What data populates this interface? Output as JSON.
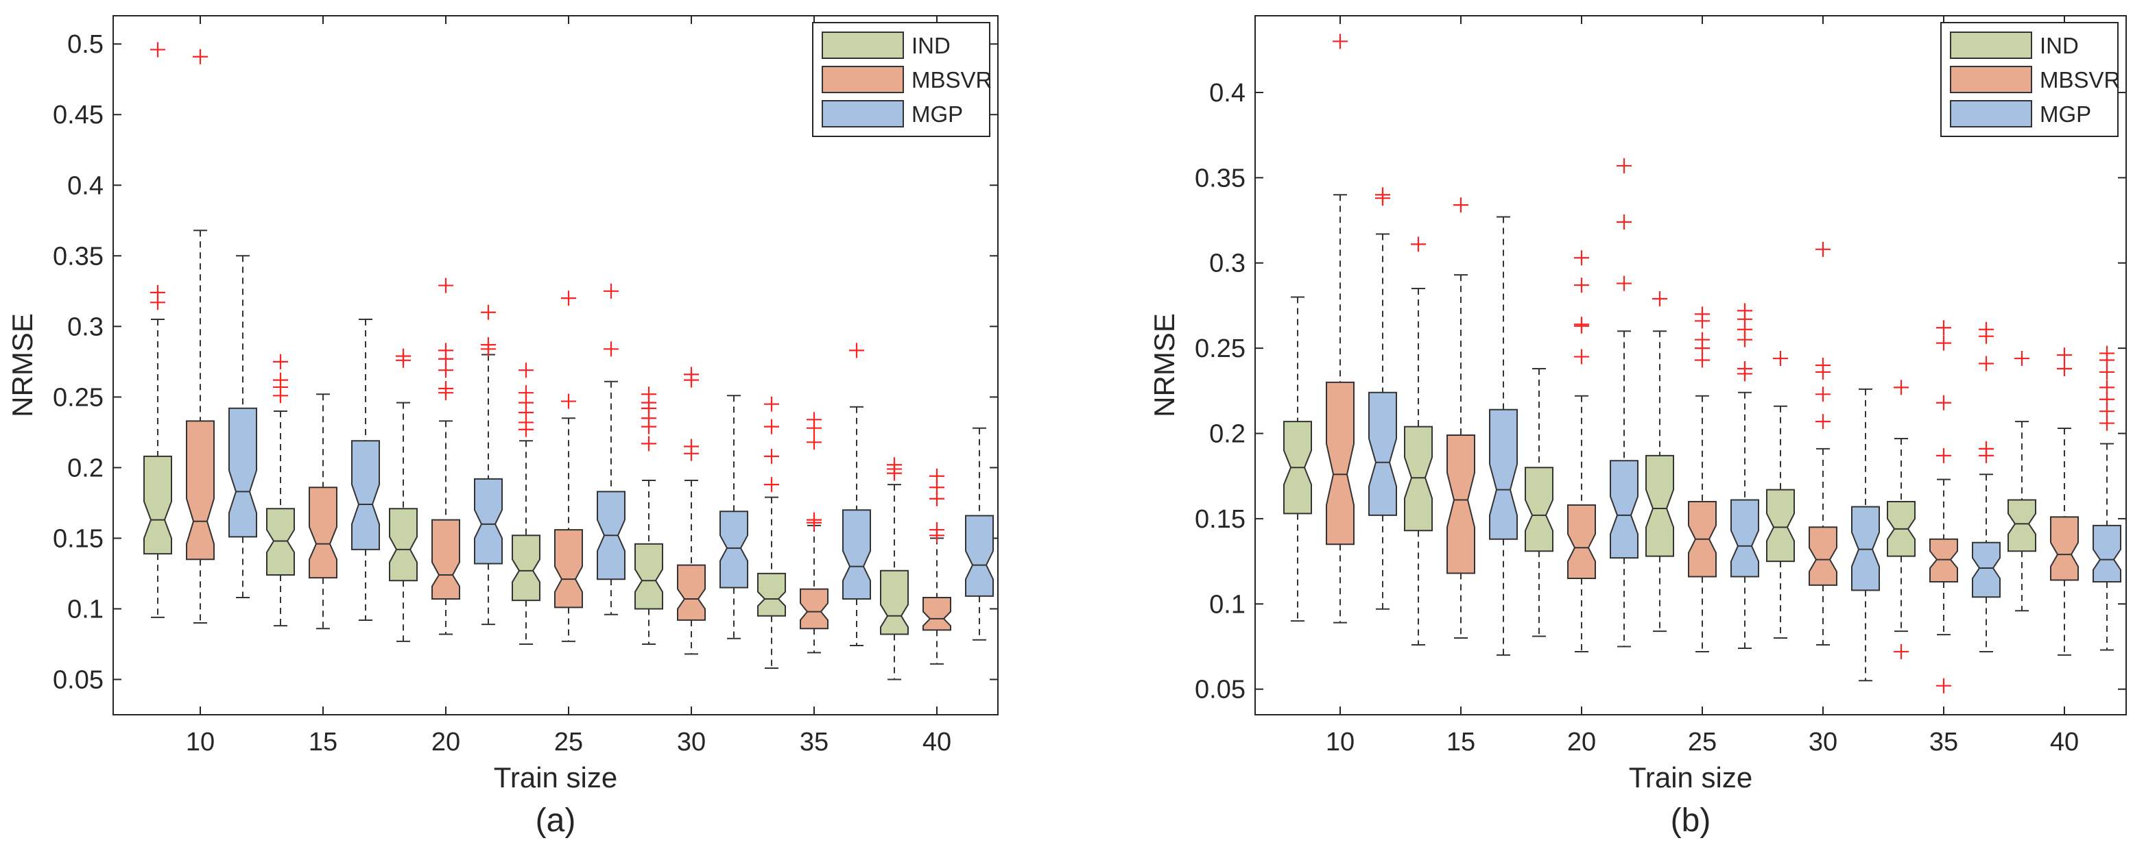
{
  "figure": {
    "colors": {
      "IND": "#c9d3a8",
      "MBSVR": "#e8ab8f",
      "MGP": "#a7c1e2",
      "outlier": "#ff2020",
      "axis": "#262626"
    }
  },
  "chart_data": [
    {
      "type": "box",
      "panel_label": "(a)",
      "xlabel": "Train size",
      "ylabel": "NRMSE",
      "categories": [
        "10",
        "15",
        "20",
        "25",
        "30",
        "35",
        "40"
      ],
      "ylim": [
        0.025,
        0.52
      ],
      "yticks": [
        0.05,
        0.1,
        0.15,
        0.2,
        0.25,
        0.3,
        0.35,
        0.4,
        0.45,
        0.5
      ],
      "ytick_labels": [
        "0.05",
        "0.1",
        "0.15",
        "0.2",
        "0.25",
        "0.3",
        "0.35",
        "0.4",
        "0.45",
        "0.5"
      ],
      "legend": {
        "position": "top-right",
        "entries": [
          "IND",
          "MBSVR",
          "MGP"
        ]
      },
      "series": [
        {
          "name": "IND",
          "boxes": [
            {
              "whisker_low": 0.094,
              "q1": 0.139,
              "median": 0.163,
              "q3": 0.208,
              "whisker_high": 0.305,
              "notch_low": 0.15,
              "notch_high": 0.176,
              "outliers": [
                0.496,
                0.324,
                0.317
              ]
            },
            {
              "whisker_low": 0.088,
              "q1": 0.124,
              "median": 0.148,
              "q3": 0.171,
              "whisker_high": 0.24,
              "notch_low": 0.14,
              "notch_high": 0.156,
              "outliers": [
                0.275,
                0.262,
                0.257,
                0.251
              ]
            },
            {
              "whisker_low": 0.077,
              "q1": 0.12,
              "median": 0.142,
              "q3": 0.171,
              "whisker_high": 0.246,
              "notch_low": 0.133,
              "notch_high": 0.151,
              "outliers": [
                0.279,
                0.276
              ]
            },
            {
              "whisker_low": 0.075,
              "q1": 0.106,
              "median": 0.127,
              "q3": 0.152,
              "whisker_high": 0.219,
              "notch_low": 0.119,
              "notch_high": 0.135,
              "outliers": [
                0.269,
                0.253,
                0.246,
                0.239,
                0.232,
                0.227
              ]
            },
            {
              "whisker_low": 0.075,
              "q1": 0.1,
              "median": 0.12,
              "q3": 0.146,
              "whisker_high": 0.191,
              "notch_low": 0.112,
              "notch_high": 0.128,
              "outliers": [
                0.252,
                0.246,
                0.242,
                0.235,
                0.229,
                0.217
              ]
            },
            {
              "whisker_low": 0.058,
              "q1": 0.095,
              "median": 0.107,
              "q3": 0.125,
              "whisker_high": 0.179,
              "notch_low": 0.102,
              "notch_high": 0.112,
              "outliers": [
                0.245,
                0.229,
                0.208,
                0.188
              ]
            },
            {
              "whisker_low": 0.05,
              "q1": 0.082,
              "median": 0.095,
              "q3": 0.127,
              "whisker_high": 0.188,
              "notch_low": 0.087,
              "notch_high": 0.103,
              "outliers": [
                0.202,
                0.199,
                0.196
              ]
            }
          ]
        },
        {
          "name": "MBSVR",
          "boxes": [
            {
              "whisker_low": 0.09,
              "q1": 0.135,
              "median": 0.162,
              "q3": 0.233,
              "whisker_high": 0.368,
              "notch_low": 0.146,
              "notch_high": 0.178,
              "outliers": [
                0.491
              ]
            },
            {
              "whisker_low": 0.086,
              "q1": 0.122,
              "median": 0.146,
              "q3": 0.186,
              "whisker_high": 0.252,
              "notch_low": 0.135,
              "notch_high": 0.158,
              "outliers": []
            },
            {
              "whisker_low": 0.082,
              "q1": 0.107,
              "median": 0.124,
              "q3": 0.163,
              "whisker_high": 0.233,
              "notch_low": 0.116,
              "notch_high": 0.133,
              "outliers": [
                0.329,
                0.283,
                0.277,
                0.269,
                0.256,
                0.253
              ]
            },
            {
              "whisker_low": 0.077,
              "q1": 0.101,
              "median": 0.121,
              "q3": 0.156,
              "whisker_high": 0.235,
              "notch_low": 0.112,
              "notch_high": 0.13,
              "outliers": [
                0.32,
                0.247
              ]
            },
            {
              "whisker_low": 0.068,
              "q1": 0.092,
              "median": 0.107,
              "q3": 0.131,
              "whisker_high": 0.191,
              "notch_low": 0.1,
              "notch_high": 0.114,
              "outliers": [
                0.266,
                0.262,
                0.215,
                0.21
              ]
            },
            {
              "whisker_low": 0.069,
              "q1": 0.086,
              "median": 0.098,
              "q3": 0.114,
              "whisker_high": 0.159,
              "notch_low": 0.092,
              "notch_high": 0.104,
              "outliers": [
                0.234,
                0.228,
                0.218,
                0.163,
                0.161
              ]
            },
            {
              "whisker_low": 0.061,
              "q1": 0.085,
              "median": 0.093,
              "q3": 0.108,
              "whisker_high": 0.15,
              "notch_low": 0.088,
              "notch_high": 0.098,
              "outliers": [
                0.194,
                0.186,
                0.178,
                0.156,
                0.152
              ]
            }
          ]
        },
        {
          "name": "MGP",
          "boxes": [
            {
              "whisker_low": 0.108,
              "q1": 0.151,
              "median": 0.183,
              "q3": 0.242,
              "whisker_high": 0.35,
              "notch_low": 0.168,
              "notch_high": 0.198,
              "outliers": []
            },
            {
              "whisker_low": 0.092,
              "q1": 0.142,
              "median": 0.174,
              "q3": 0.219,
              "whisker_high": 0.305,
              "notch_low": 0.16,
              "notch_high": 0.188,
              "outliers": []
            },
            {
              "whisker_low": 0.089,
              "q1": 0.132,
              "median": 0.16,
              "q3": 0.192,
              "whisker_high": 0.28,
              "notch_low": 0.15,
              "notch_high": 0.17,
              "outliers": [
                0.31,
                0.287,
                0.284
              ]
            },
            {
              "whisker_low": 0.096,
              "q1": 0.121,
              "median": 0.152,
              "q3": 0.183,
              "whisker_high": 0.261,
              "notch_low": 0.141,
              "notch_high": 0.163,
              "outliers": [
                0.325,
                0.284
              ]
            },
            {
              "whisker_low": 0.079,
              "q1": 0.115,
              "median": 0.143,
              "q3": 0.169,
              "whisker_high": 0.251,
              "notch_low": 0.134,
              "notch_high": 0.152,
              "outliers": []
            },
            {
              "whisker_low": 0.074,
              "q1": 0.107,
              "median": 0.13,
              "q3": 0.17,
              "whisker_high": 0.243,
              "notch_low": 0.12,
              "notch_high": 0.141,
              "outliers": [
                0.283
              ]
            },
            {
              "whisker_low": 0.078,
              "q1": 0.109,
              "median": 0.131,
              "q3": 0.166,
              "whisker_high": 0.228,
              "notch_low": 0.121,
              "notch_high": 0.141,
              "outliers": []
            }
          ]
        }
      ]
    },
    {
      "type": "box",
      "panel_label": "(b)",
      "xlabel": "Train size",
      "ylabel": "NRMSE",
      "categories": [
        "10",
        "15",
        "20",
        "25",
        "30",
        "35",
        "40"
      ],
      "ylim": [
        0.035,
        0.445
      ],
      "yticks": [
        0.05,
        0.1,
        0.15,
        0.2,
        0.25,
        0.3,
        0.35,
        0.4
      ],
      "ytick_labels": [
        "0.05",
        "0.1",
        "0.15",
        "0.2",
        "0.25",
        "0.3",
        "0.35",
        "0.4"
      ],
      "legend": {
        "position": "top-right",
        "entries": [
          "IND",
          "MBSVR",
          "MGP"
        ]
      },
      "series": [
        {
          "name": "IND",
          "boxes": [
            {
              "whisker_low": 0.09,
              "q1": 0.153,
              "median": 0.18,
              "q3": 0.207,
              "whisker_high": 0.28,
              "notch_low": 0.17,
              "notch_high": 0.19,
              "outliers": []
            },
            {
              "whisker_low": 0.076,
              "q1": 0.143,
              "median": 0.174,
              "q3": 0.204,
              "whisker_high": 0.285,
              "notch_low": 0.162,
              "notch_high": 0.186,
              "outliers": [
                0.311
              ]
            },
            {
              "whisker_low": 0.081,
              "q1": 0.131,
              "median": 0.152,
              "q3": 0.18,
              "whisker_high": 0.238,
              "notch_low": 0.143,
              "notch_high": 0.161,
              "outliers": []
            },
            {
              "whisker_low": 0.084,
              "q1": 0.128,
              "median": 0.156,
              "q3": 0.187,
              "whisker_high": 0.26,
              "notch_low": 0.145,
              "notch_high": 0.167,
              "outliers": [
                0.279
              ]
            },
            {
              "whisker_low": 0.08,
              "q1": 0.125,
              "median": 0.145,
              "q3": 0.167,
              "whisker_high": 0.216,
              "notch_low": 0.137,
              "notch_high": 0.153,
              "outliers": [
                0.244
              ]
            },
            {
              "whisker_low": 0.084,
              "q1": 0.128,
              "median": 0.144,
              "q3": 0.16,
              "whisker_high": 0.197,
              "notch_low": 0.138,
              "notch_high": 0.15,
              "outliers": [
                0.227,
                0.072
              ]
            },
            {
              "whisker_low": 0.096,
              "q1": 0.131,
              "median": 0.147,
              "q3": 0.161,
              "whisker_high": 0.207,
              "notch_low": 0.141,
              "notch_high": 0.153,
              "outliers": [
                0.244
              ]
            }
          ]
        },
        {
          "name": "MBSVR",
          "boxes": [
            {
              "whisker_low": 0.089,
              "q1": 0.135,
              "median": 0.176,
              "q3": 0.23,
              "whisker_high": 0.34,
              "notch_low": 0.158,
              "notch_high": 0.194,
              "outliers": [
                0.43
              ]
            },
            {
              "whisker_low": 0.08,
              "q1": 0.118,
              "median": 0.161,
              "q3": 0.199,
              "whisker_high": 0.293,
              "notch_low": 0.145,
              "notch_high": 0.177,
              "outliers": [
                0.334
              ]
            },
            {
              "whisker_low": 0.072,
              "q1": 0.115,
              "median": 0.133,
              "q3": 0.158,
              "whisker_high": 0.222,
              "notch_low": 0.125,
              "notch_high": 0.141,
              "outliers": [
                0.303,
                0.287,
                0.264,
                0.263,
                0.245
              ]
            },
            {
              "whisker_low": 0.072,
              "q1": 0.116,
              "median": 0.138,
              "q3": 0.16,
              "whisker_high": 0.222,
              "notch_low": 0.13,
              "notch_high": 0.146,
              "outliers": [
                0.27,
                0.266,
                0.255,
                0.25,
                0.243
              ]
            },
            {
              "whisker_low": 0.076,
              "q1": 0.111,
              "median": 0.126,
              "q3": 0.145,
              "whisker_high": 0.191,
              "notch_low": 0.119,
              "notch_high": 0.133,
              "outliers": [
                0.308,
                0.24,
                0.236,
                0.223,
                0.207
              ]
            },
            {
              "whisker_low": 0.082,
              "q1": 0.113,
              "median": 0.126,
              "q3": 0.138,
              "whisker_high": 0.173,
              "notch_low": 0.121,
              "notch_high": 0.131,
              "outliers": [
                0.262,
                0.253,
                0.218,
                0.187,
                0.052
              ]
            },
            {
              "whisker_low": 0.07,
              "q1": 0.114,
              "median": 0.129,
              "q3": 0.151,
              "whisker_high": 0.203,
              "notch_low": 0.122,
              "notch_high": 0.136,
              "outliers": [
                0.246,
                0.238
              ]
            }
          ]
        },
        {
          "name": "MGP",
          "boxes": [
            {
              "whisker_low": 0.097,
              "q1": 0.152,
              "median": 0.183,
              "q3": 0.224,
              "whisker_high": 0.317,
              "notch_low": 0.169,
              "notch_high": 0.197,
              "outliers": [
                0.34,
                0.338
              ]
            },
            {
              "whisker_low": 0.07,
              "q1": 0.138,
              "median": 0.167,
              "q3": 0.214,
              "whisker_high": 0.327,
              "notch_low": 0.152,
              "notch_high": 0.182,
              "outliers": []
            },
            {
              "whisker_low": 0.075,
              "q1": 0.127,
              "median": 0.152,
              "q3": 0.184,
              "whisker_high": 0.26,
              "notch_low": 0.141,
              "notch_high": 0.163,
              "outliers": [
                0.357,
                0.324,
                0.288
              ]
            },
            {
              "whisker_low": 0.074,
              "q1": 0.116,
              "median": 0.134,
              "q3": 0.161,
              "whisker_high": 0.224,
              "notch_low": 0.125,
              "notch_high": 0.143,
              "outliers": [
                0.272,
                0.267,
                0.261,
                0.255,
                0.238,
                0.235
              ]
            },
            {
              "whisker_low": 0.055,
              "q1": 0.108,
              "median": 0.132,
              "q3": 0.157,
              "whisker_high": 0.226,
              "notch_low": 0.122,
              "notch_high": 0.142,
              "outliers": []
            },
            {
              "whisker_low": 0.072,
              "q1": 0.104,
              "median": 0.121,
              "q3": 0.136,
              "whisker_high": 0.176,
              "notch_low": 0.115,
              "notch_high": 0.127,
              "outliers": [
                0.261,
                0.257,
                0.241,
                0.191,
                0.187
              ]
            },
            {
              "whisker_low": 0.073,
              "q1": 0.113,
              "median": 0.126,
              "q3": 0.146,
              "whisker_high": 0.194,
              "notch_low": 0.12,
              "notch_high": 0.132,
              "outliers": [
                0.247,
                0.243,
                0.236,
                0.227,
                0.22,
                0.213,
                0.206
              ]
            }
          ]
        }
      ]
    }
  ]
}
